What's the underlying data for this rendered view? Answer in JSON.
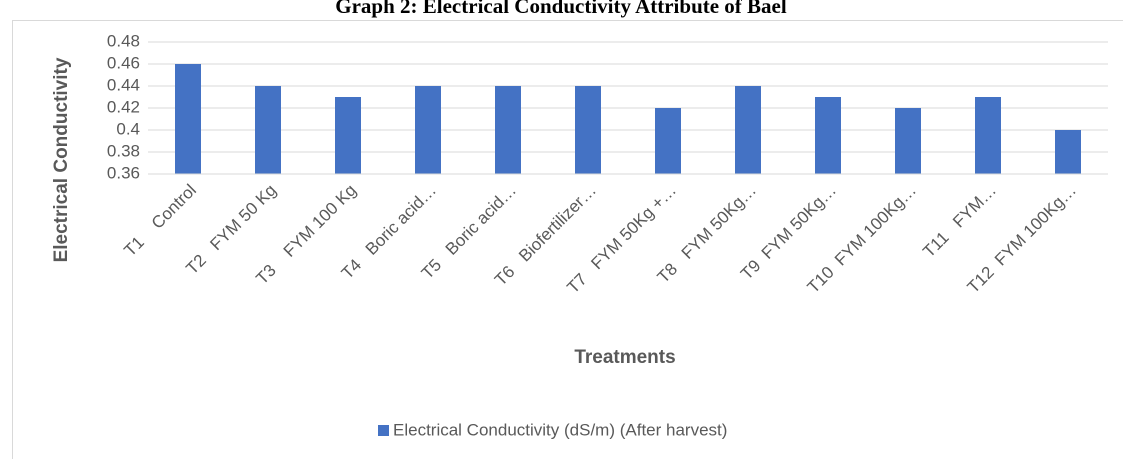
{
  "chart_data": {
    "type": "bar",
    "title": "Graph 2: Electrical Conductivity Attribute of Bael",
    "y_label": "Electrical Conductivity",
    "x_label": "Treatments",
    "categories": [
      "T1    Control",
      "T2   FYM 50 Kg",
      "T3    FYM 100 Kg",
      "T4   Boric acid…",
      "T5   Boric acid…",
      "T6   Biofertilizer…",
      "T7   FYM 50Kg +…",
      "T8   FYM 50Kg…",
      "T9  FYM 50Kg…",
      "T10  FYM 100Kg…",
      "T11   FYM…",
      "T12  FYM 100Kg…"
    ],
    "series": [
      {
        "name": "Electrical Conductivity (dS/m) (After harvest)",
        "color": "#4472c4",
        "values": [
          0.46,
          0.44,
          0.43,
          0.44,
          0.44,
          0.44,
          0.42,
          0.44,
          0.43,
          0.42,
          0.43,
          0.4
        ]
      }
    ],
    "ylim": [
      0.36,
      0.48
    ],
    "yticks": [
      0.36,
      0.38,
      0.4,
      0.42,
      0.44,
      0.46,
      0.48
    ],
    "grid": true,
    "legend": "bottom"
  }
}
